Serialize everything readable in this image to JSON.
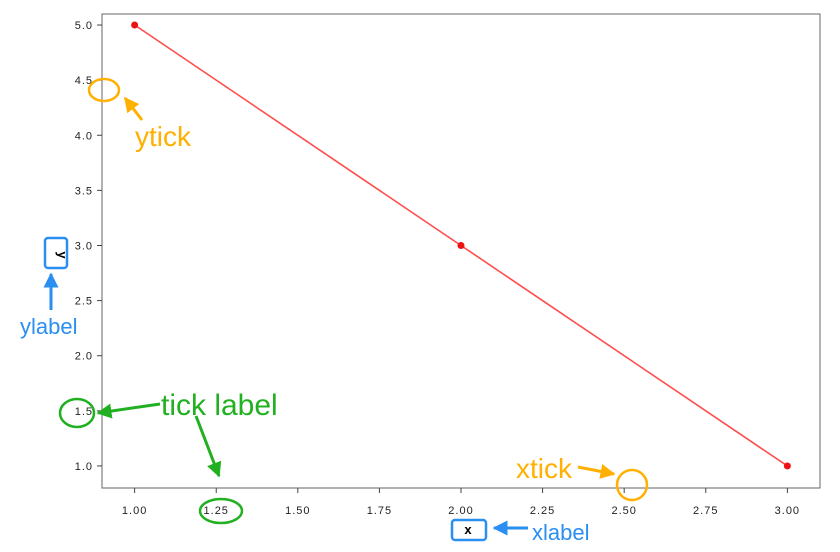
{
  "chart_data": {
    "type": "line",
    "x": [
      1.0,
      2.0,
      3.0
    ],
    "y": [
      5.0,
      3.0,
      1.0
    ],
    "xlim": [
      0.9,
      3.1
    ],
    "ylim": [
      0.8,
      5.1
    ],
    "xticks": [
      1.0,
      1.25,
      1.5,
      1.75,
      2.0,
      2.25,
      2.5,
      2.75,
      3.0
    ],
    "xtick_labels": [
      "1.00",
      "1.25",
      "1.50",
      "1.75",
      "2.00",
      "2.25",
      "2.50",
      "2.75",
      "3.00"
    ],
    "yticks": [
      1.0,
      1.5,
      2.0,
      2.5,
      3.0,
      3.5,
      4.0,
      4.5,
      5.0
    ],
    "ytick_labels": [
      "1.0",
      "1.5",
      "2.0",
      "2.5",
      "3.0",
      "3.5",
      "4.0",
      "4.5",
      "5.0"
    ],
    "xlabel": "x",
    "ylabel": "y",
    "grid": false,
    "colors": {
      "line": "#ff4d4d",
      "marker": "#ee1111"
    }
  },
  "annotations": {
    "ytick": {
      "text": "ytick",
      "color": "#ffb000"
    },
    "xtick": {
      "text": "xtick",
      "color": "#ffb000"
    },
    "tick_label": {
      "text": "tick label",
      "color": "#20b020"
    },
    "ylabel": {
      "text": "ylabel",
      "color": "#2a8ff0"
    },
    "xlabel": {
      "text": "xlabel",
      "color": "#2a8ff0"
    }
  }
}
